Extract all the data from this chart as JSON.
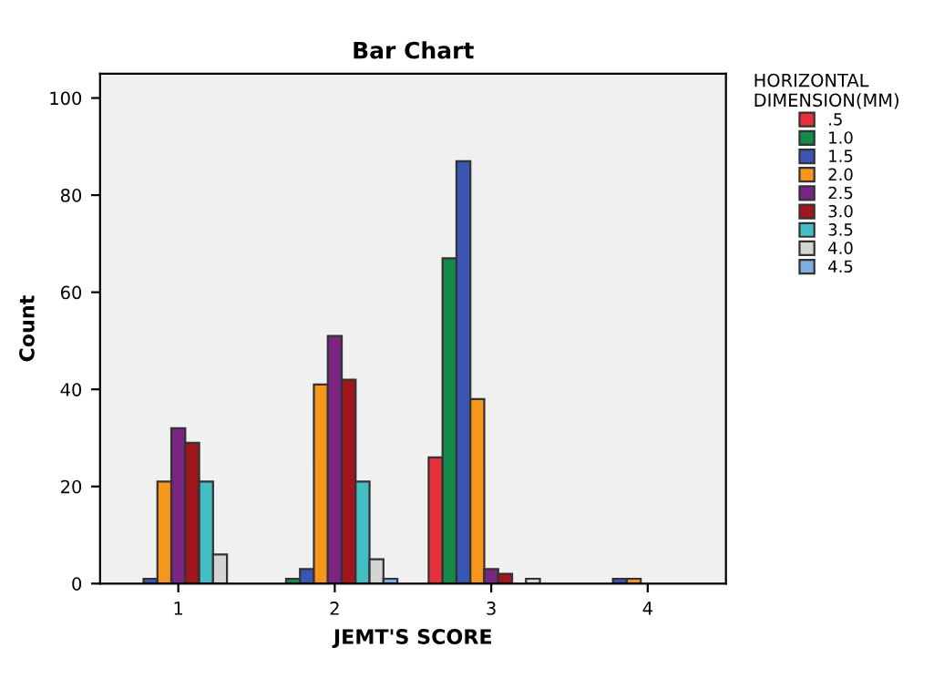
{
  "chart_data": {
    "type": "bar",
    "title": "Bar Chart",
    "xlabel": "JEMT'S SCORE",
    "ylabel": "Count",
    "legend_title": "HORIZONTAL\nDIMENSION(MM)",
    "categories": [
      "1",
      "2",
      "3",
      "4"
    ],
    "series": [
      {
        "name": ".5",
        "color": "#e8303a",
        "values": [
          null,
          null,
          26,
          null
        ]
      },
      {
        "name": "1.0",
        "color": "#13894a",
        "values": [
          null,
          1,
          67,
          null
        ]
      },
      {
        "name": "1.5",
        "color": "#3a55b4",
        "values": [
          1,
          3,
          87,
          1
        ]
      },
      {
        "name": "2.0",
        "color": "#f7961d",
        "values": [
          21,
          41,
          38,
          1
        ]
      },
      {
        "name": "2.5",
        "color": "#7a2582",
        "values": [
          32,
          51,
          3,
          null
        ]
      },
      {
        "name": "3.0",
        "color": "#a3151c",
        "values": [
          29,
          42,
          2,
          null
        ]
      },
      {
        "name": "3.5",
        "color": "#43bfc3",
        "values": [
          21,
          21,
          null,
          null
        ]
      },
      {
        "name": "4.0",
        "color": "#d4d4d4",
        "values": [
          6,
          5,
          1,
          null
        ]
      },
      {
        "name": "4.5",
        "color": "#7eaee0",
        "values": [
          null,
          1,
          null,
          null
        ]
      }
    ],
    "ylim": [
      0,
      105
    ],
    "yticks": [
      0,
      20,
      40,
      60,
      80,
      100
    ],
    "grid": false,
    "legend": "right"
  }
}
